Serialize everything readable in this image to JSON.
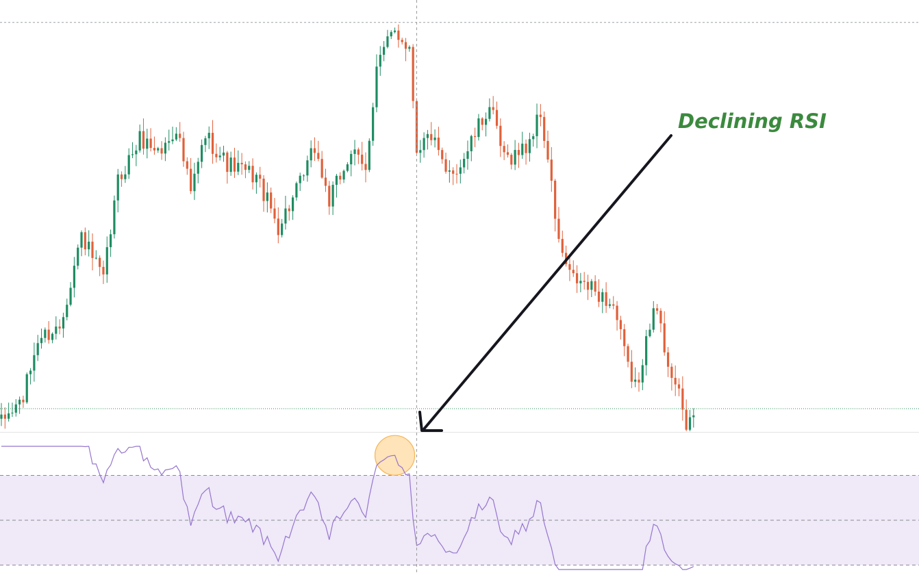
{
  "chart_data": {
    "type": "candlestick",
    "annotation": "Declining RSI",
    "grid": false,
    "price_panel": {
      "ylim": [
        0,
        100
      ],
      "reference_lines": [
        98,
        5.5
      ],
      "colors": {
        "up": "#1e8c62",
        "down": "#e0603a",
        "reference_top": "#9aa0a6",
        "reference_price": "#2e8b57"
      },
      "waypoints": [
        {
          "i": 0,
          "p": 2
        },
        {
          "i": 6,
          "p": 8
        },
        {
          "i": 10,
          "p": 22
        },
        {
          "i": 16,
          "p": 25
        },
        {
          "i": 22,
          "p": 47
        },
        {
          "i": 28,
          "p": 36
        },
        {
          "i": 32,
          "p": 60
        },
        {
          "i": 38,
          "p": 70
        },
        {
          "i": 44,
          "p": 67
        },
        {
          "i": 48,
          "p": 73
        },
        {
          "i": 52,
          "p": 57
        },
        {
          "i": 56,
          "p": 71
        },
        {
          "i": 62,
          "p": 64
        },
        {
          "i": 70,
          "p": 61
        },
        {
          "i": 76,
          "p": 49
        },
        {
          "i": 82,
          "p": 59
        },
        {
          "i": 86,
          "p": 68
        },
        {
          "i": 90,
          "p": 55
        },
        {
          "i": 96,
          "p": 67
        },
        {
          "i": 100,
          "p": 62
        },
        {
          "i": 103,
          "p": 88
        },
        {
          "i": 108,
          "p": 96
        },
        {
          "i": 112,
          "p": 92
        },
        {
          "i": 114,
          "p": 68
        },
        {
          "i": 118,
          "p": 71
        },
        {
          "i": 122,
          "p": 61
        },
        {
          "i": 126,
          "p": 64
        },
        {
          "i": 130,
          "p": 71
        },
        {
          "i": 134,
          "p": 78
        },
        {
          "i": 138,
          "p": 65
        },
        {
          "i": 144,
          "p": 68
        },
        {
          "i": 148,
          "p": 76
        },
        {
          "i": 150,
          "p": 65
        },
        {
          "i": 153,
          "p": 45
        },
        {
          "i": 156,
          "p": 37
        },
        {
          "i": 160,
          "p": 35
        },
        {
          "i": 164,
          "p": 33
        },
        {
          "i": 168,
          "p": 30
        },
        {
          "i": 172,
          "p": 15
        },
        {
          "i": 175,
          "p": 10
        },
        {
          "i": 177,
          "p": 25
        },
        {
          "i": 180,
          "p": 29
        },
        {
          "i": 182,
          "p": 20
        },
        {
          "i": 186,
          "p": 8
        },
        {
          "i": 188,
          "p": 1
        },
        {
          "i": 190,
          "p": 5
        }
      ]
    },
    "rsi_panel": {
      "levels": {
        "upper": 70,
        "middle": 50,
        "lower": 30
      },
      "ylim": [
        28,
        83
      ],
      "colors": {
        "line": "#9575cd",
        "band": "#efe9f8",
        "highlight": "#ffcc80"
      },
      "highlight_bar": 108
    },
    "crosshair_bar": 114
  }
}
